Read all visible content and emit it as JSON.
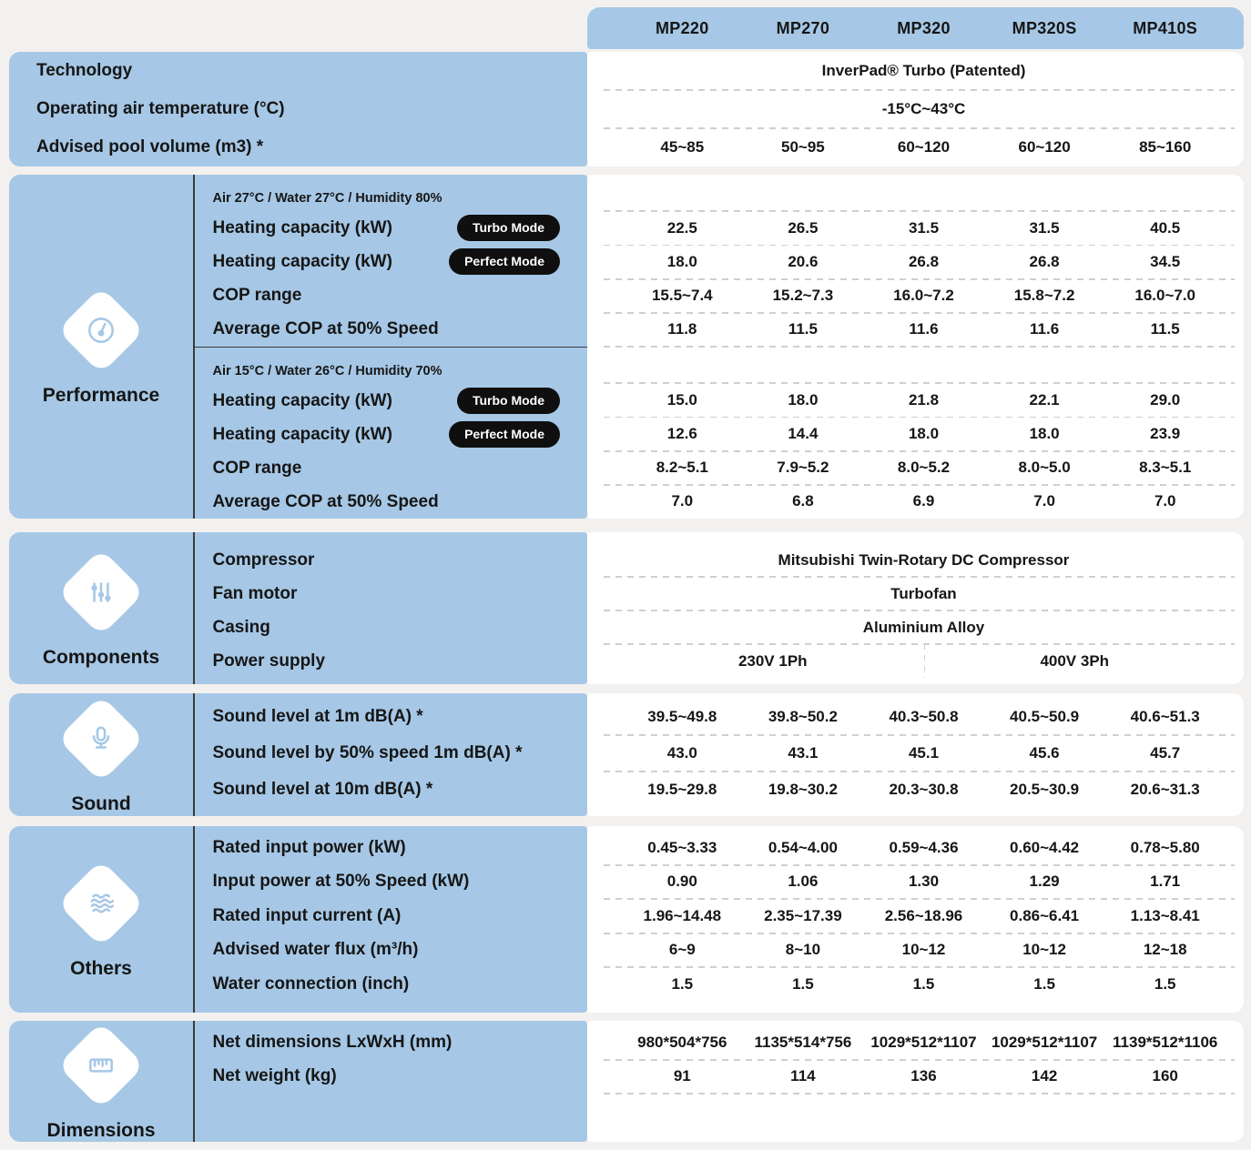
{
  "colors": {
    "page_bg": "#f3f1ef",
    "accent_blue": "#a6c8e6",
    "panel_white": "#ffffff",
    "pill_bg": "#0f0f0f",
    "pill_text": "#ffffff",
    "text": "#161616",
    "dashed_separator": "#cfcfcf",
    "solid_divider": "#3b3b3b"
  },
  "header": {
    "models": [
      "MP220",
      "MP270",
      "MP320",
      "MP320S",
      "MP410S"
    ]
  },
  "sections": [
    {
      "id": "general",
      "title": null,
      "icon": null,
      "rows": [
        {
          "label": "Technology",
          "type": "merged",
          "value": "InverPad® Turbo (Patented)"
        },
        {
          "label": "Operating air temperature (°C)",
          "type": "merged",
          "value": "-15°C~43°C"
        },
        {
          "label": "Advised pool volume (m3) *",
          "type": "cells",
          "values": [
            "45~85",
            "50~95",
            "60~120",
            "60~120",
            "85~160"
          ]
        }
      ]
    },
    {
      "id": "performance",
      "title": "Performance",
      "icon": "gauge-icon",
      "subsections": [
        {
          "condition": "Air 27°C / Water 27°C / Humidity 80%",
          "rows": [
            {
              "label": "Heating capacity (kW)",
              "pill": "Turbo Mode",
              "type": "cells",
              "values": [
                "22.5",
                "26.5",
                "31.5",
                "31.5",
                "40.5"
              ]
            },
            {
              "label": "Heating capacity (kW)",
              "pill": "Perfect Mode",
              "type": "cells",
              "values": [
                "18.0",
                "20.6",
                "26.8",
                "26.8",
                "34.5"
              ]
            },
            {
              "label": "COP range",
              "type": "cells",
              "values": [
                "15.5~7.4",
                "15.2~7.3",
                "16.0~7.2",
                "15.8~7.2",
                "16.0~7.0"
              ]
            },
            {
              "label": "Average COP at 50% Speed",
              "type": "cells",
              "values": [
                "11.8",
                "11.5",
                "11.6",
                "11.6",
                "11.5"
              ]
            }
          ]
        },
        {
          "condition": "Air 15°C / Water 26°C / Humidity 70%",
          "rows": [
            {
              "label": "Heating capacity (kW)",
              "pill": "Turbo Mode",
              "type": "cells",
              "values": [
                "15.0",
                "18.0",
                "21.8",
                "22.1",
                "29.0"
              ]
            },
            {
              "label": "Heating capacity (kW)",
              "pill": "Perfect Mode",
              "type": "cells",
              "values": [
                "12.6",
                "14.4",
                "18.0",
                "18.0",
                "23.9"
              ]
            },
            {
              "label": "COP range",
              "type": "cells",
              "values": [
                "8.2~5.1",
                "7.9~5.2",
                "8.0~5.2",
                "8.0~5.0",
                "8.3~5.1"
              ]
            },
            {
              "label": "Average COP at 50% Speed",
              "type": "cells",
              "values": [
                "7.0",
                "6.8",
                "6.9",
                "7.0",
                "7.0"
              ]
            }
          ]
        }
      ]
    },
    {
      "id": "components",
      "title": "Components",
      "icon": "sliders-icon",
      "rows": [
        {
          "label": "Compressor",
          "type": "merged",
          "value": "Mitsubishi Twin-Rotary DC Compressor"
        },
        {
          "label": "Fan motor",
          "type": "merged",
          "value": "Turbofan"
        },
        {
          "label": "Casing",
          "type": "merged",
          "value": "Aluminium Alloy"
        },
        {
          "label": "Power supply",
          "type": "split",
          "left": "230V 1Ph",
          "right": "400V 3Ph"
        }
      ]
    },
    {
      "id": "sound",
      "title": "Sound",
      "icon": "microphone-icon",
      "rows": [
        {
          "label": "Sound level at 1m dB(A) *",
          "type": "cells",
          "values": [
            "39.5~49.8",
            "39.8~50.2",
            "40.3~50.8",
            "40.5~50.9",
            "40.6~51.3"
          ]
        },
        {
          "label": "Sound level by 50% speed 1m dB(A) *",
          "type": "cells",
          "values": [
            "43.0",
            "43.1",
            "45.1",
            "45.6",
            "45.7"
          ]
        },
        {
          "label": "Sound level at 10m dB(A) *",
          "type": "cells",
          "values": [
            "19.5~29.8",
            "19.8~30.2",
            "20.3~30.8",
            "20.5~30.9",
            "20.6~31.3"
          ]
        }
      ]
    },
    {
      "id": "others",
      "title": "Others",
      "icon": "waves-icon",
      "rows": [
        {
          "label": "Rated input power (kW)",
          "type": "cells",
          "values": [
            "0.45~3.33",
            "0.54~4.00",
            "0.59~4.36",
            "0.60~4.42",
            "0.78~5.80"
          ]
        },
        {
          "label": "Input power at 50% Speed (kW)",
          "type": "cells",
          "values": [
            "0.90",
            "1.06",
            "1.30",
            "1.29",
            "1.71"
          ]
        },
        {
          "label": "Rated input current (A)",
          "type": "cells",
          "values": [
            "1.96~14.48",
            "2.35~17.39",
            "2.56~18.96",
            "0.86~6.41",
            "1.13~8.41"
          ]
        },
        {
          "label": "Advised water flux (m³/h)",
          "type": "cells",
          "values": [
            "6~9",
            "8~10",
            "10~12",
            "10~12",
            "12~18"
          ]
        },
        {
          "label": "Water connection (inch)",
          "type": "cells",
          "values": [
            "1.5",
            "1.5",
            "1.5",
            "1.5",
            "1.5"
          ]
        }
      ]
    },
    {
      "id": "dimensions",
      "title": "Dimensions",
      "icon": "ruler-icon",
      "rows": [
        {
          "label": "Net dimensions LxWxH (mm)",
          "type": "cells",
          "values": [
            "980*504*756",
            "1135*514*756",
            "1029*512*1107",
            "1029*512*1107",
            "1139*512*1106"
          ]
        },
        {
          "label": "Net weight (kg)",
          "type": "cells",
          "values": [
            "91",
            "114",
            "136",
            "142",
            "160"
          ]
        }
      ]
    }
  ]
}
